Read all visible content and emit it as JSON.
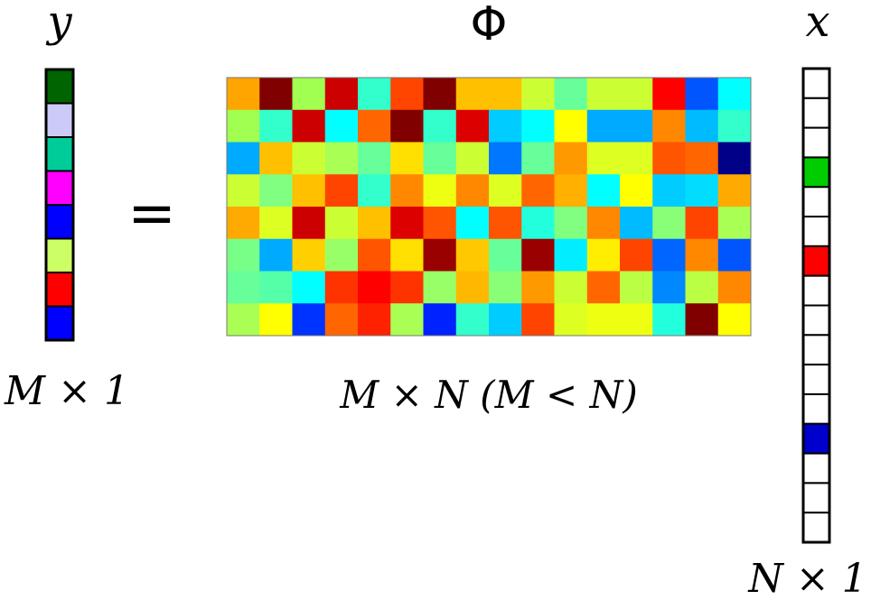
{
  "y_vector": {
    "symbol": "y",
    "dimension": "M × 1",
    "cells": [
      "#006400",
      "#cccbf8",
      "#00cc99",
      "#ff00ff",
      "#0000ff",
      "#ccff66",
      "#ff0000",
      "#0000ff"
    ]
  },
  "equals": "=",
  "phi_matrix": {
    "symbol": "Φ",
    "dimension": "M × N (M < N)",
    "rows": [
      [
        "#ffa500",
        "#800000",
        "#a0ff50",
        "#cc0000",
        "#33ffcc",
        "#ff4500",
        "#800000",
        "#ffc000",
        "#ffc000",
        "#ccff33",
        "#66ff99",
        "#ccff33",
        "#ccff33",
        "#ff0000",
        "#0055ff",
        "#00ffff"
      ],
      [
        "#a0ff50",
        "#33ffcc",
        "#cc0000",
        "#00ffff",
        "#ff6600",
        "#800000",
        "#33ffcc",
        "#dd0000",
        "#00ccff",
        "#00ffff",
        "#ffff00",
        "#00aaff",
        "#00aaff",
        "#ff8800",
        "#00bbff",
        "#33ffcc"
      ],
      [
        "#00aaff",
        "#ffc000",
        "#ccff33",
        "#aaff55",
        "#66ff99",
        "#ffe000",
        "#66ff99",
        "#ccff33",
        "#0077ff",
        "#66ff99",
        "#ff9900",
        "#ddff22",
        "#ddff22",
        "#ff5500",
        "#ff6600",
        "#000088"
      ],
      [
        "#ccff33",
        "#80ff80",
        "#ffc000",
        "#ff4400",
        "#33ffcc",
        "#ff8800",
        "#eeff11",
        "#ff8800",
        "#ddff22",
        "#ff6600",
        "#ffb000",
        "#00ffff",
        "#ffff00",
        "#00ccff",
        "#00ddff",
        "#ffaa00"
      ],
      [
        "#ffaa00",
        "#ddff22",
        "#cc0000",
        "#ccff33",
        "#ffc000",
        "#dd0000",
        "#ff5500",
        "#00ffff",
        "#ff5500",
        "#22ffdd",
        "#80ff80",
        "#ff8800",
        "#00bbff",
        "#88ff77",
        "#ff4400",
        "#aaff55"
      ],
      [
        "#77ff88",
        "#00aaff",
        "#ffd000",
        "#99ff66",
        "#ff5500",
        "#ffe000",
        "#990000",
        "#ffc800",
        "#66ff99",
        "#990000",
        "#00eeff",
        "#ffee00",
        "#ff4400",
        "#0066ff",
        "#ff8800",
        "#0055ff"
      ],
      [
        "#66ff99",
        "#55ffaa",
        "#00ffff",
        "#ff3300",
        "#ff0000",
        "#ff3300",
        "#99ff66",
        "#ffb800",
        "#88ff77",
        "#ff9900",
        "#ccff33",
        "#ff6600",
        "#bbff44",
        "#0088ff",
        "#bbff44",
        "#ff8800"
      ],
      [
        "#aaff55",
        "#ffff00",
        "#0033ff",
        "#ff6600",
        "#ff2200",
        "#aaff55",
        "#0022ff",
        "#33ffcc",
        "#00ccff",
        "#ff4400",
        "#ddff22",
        "#eeff11",
        "#eeff11",
        "#22ffdd",
        "#800000",
        "#ffff00"
      ]
    ]
  },
  "x_vector": {
    "symbol": "x",
    "dimension": "N × 1",
    "cells": [
      "#ffffff",
      "#ffffff",
      "#ffffff",
      "#00cc00",
      "#ffffff",
      "#ffffff",
      "#ff0000",
      "#ffffff",
      "#ffffff",
      "#ffffff",
      "#ffffff",
      "#ffffff",
      "#0000cc",
      "#ffffff",
      "#ffffff",
      "#ffffff"
    ]
  }
}
